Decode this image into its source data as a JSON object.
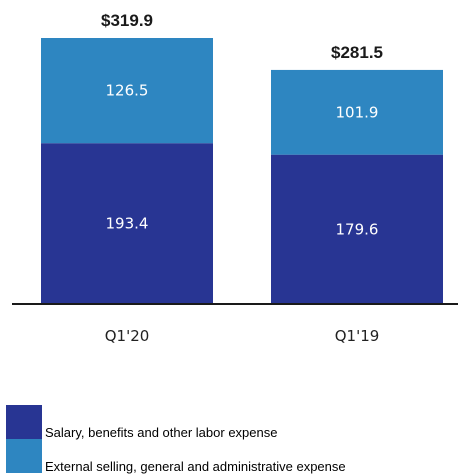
{
  "chart_data": {
    "type": "bar",
    "stacked": true,
    "categories": [
      "Q1'20",
      "Q1'19"
    ],
    "totals": [
      "$319.9",
      "$281.5"
    ],
    "series": [
      {
        "name": "Salary, benefits and other labor expense",
        "values": [
          193.4,
          179.6
        ],
        "color": "#283593"
      },
      {
        "name": "External selling, general and administrative expense",
        "values": [
          126.5,
          101.9
        ],
        "color": "#2e86c1"
      }
    ],
    "title": "",
    "xlabel": "",
    "ylabel": "",
    "ylim": [
      0,
      319.9
    ],
    "grid": false,
    "legend_position": "bottom-left"
  }
}
